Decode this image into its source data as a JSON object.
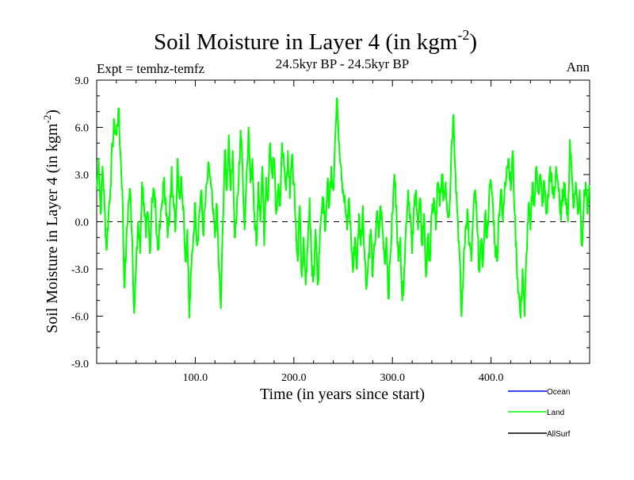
{
  "chart_data": {
    "type": "line",
    "title": "Soil Moisture in Layer 4 (in kgm",
    "title_superscript": "-2",
    "title_close": ")",
    "subtitle": "24.5kyr BP - 24.5kyr BP",
    "left_label": "Expt = temhz-temfz",
    "right_label": "Ann",
    "xlabel": "Time (in years since start)",
    "ylabel": "Soil Moisture in Layer 4 (in kgm",
    "ylabel_superscript": "-2",
    "ylabel_close": ")",
    "xlim": [
      0,
      500
    ],
    "ylim": [
      -9,
      9
    ],
    "x_ticks": [
      {
        "value": 100,
        "label": "100.0"
      },
      {
        "value": 200,
        "label": "200.0"
      },
      {
        "value": 300,
        "label": "300.0"
      },
      {
        "value": 400,
        "label": "400.0"
      }
    ],
    "y_ticks": [
      {
        "value": 9,
        "label": "9.0"
      },
      {
        "value": 6,
        "label": "6.0"
      },
      {
        "value": 3,
        "label": "3.0"
      },
      {
        "value": 0,
        "label": "0.0"
      },
      {
        "value": -3,
        "label": "-3.0"
      },
      {
        "value": -6,
        "label": "-6.0"
      },
      {
        "value": -9,
        "label": "-9.0"
      }
    ],
    "zero_line": true,
    "legend_position": "bottom-right",
    "series": [
      {
        "name": "Ocean",
        "color": "#0000ff",
        "values": []
      },
      {
        "name": "Land",
        "color": "#00ff00",
        "x": [
          0,
          500
        ],
        "anchors": [
          [
            0,
            2.0
          ],
          [
            2,
            4.0
          ],
          [
            4,
            0.5
          ],
          [
            6,
            3.5
          ],
          [
            8,
            1.0
          ],
          [
            10,
            -1.8
          ],
          [
            12,
            0.5
          ],
          [
            14,
            2.2
          ],
          [
            16,
            5.0
          ],
          [
            18,
            6.2
          ],
          [
            20,
            5.5
          ],
          [
            22,
            7.2
          ],
          [
            24,
            4.5
          ],
          [
            26,
            2.0
          ],
          [
            28,
            -4.2
          ],
          [
            30,
            -1.5
          ],
          [
            32,
            1.0
          ],
          [
            34,
            2.0
          ],
          [
            36,
            -1.0
          ],
          [
            38,
            -5.8
          ],
          [
            40,
            -3.0
          ],
          [
            42,
            0.0
          ],
          [
            44,
            -2.0
          ],
          [
            46,
            2.5
          ],
          [
            48,
            1.2
          ],
          [
            50,
            -1.0
          ],
          [
            52,
            0.5
          ],
          [
            54,
            -2.0
          ],
          [
            56,
            1.5
          ],
          [
            58,
            2.0
          ],
          [
            60,
            0.5
          ],
          [
            62,
            -1.8
          ],
          [
            64,
            -0.5
          ],
          [
            66,
            1.0
          ],
          [
            68,
            2.5
          ],
          [
            70,
            1.5
          ],
          [
            72,
            -1.0
          ],
          [
            74,
            0.5
          ],
          [
            76,
            3.5
          ],
          [
            78,
            1.0
          ],
          [
            80,
            -0.5
          ],
          [
            82,
            4.0
          ],
          [
            84,
            1.5
          ],
          [
            86,
            2.8
          ],
          [
            88,
            1.0
          ],
          [
            90,
            -2.5
          ],
          [
            92,
            -0.5
          ],
          [
            94,
            -6.1
          ],
          [
            96,
            -3.0
          ],
          [
            98,
            -1.0
          ],
          [
            100,
            1.2
          ],
          [
            102,
            -1.5
          ],
          [
            104,
            0.5
          ],
          [
            106,
            2.0
          ],
          [
            108,
            -0.8
          ],
          [
            110,
            1.0
          ],
          [
            112,
            2.5
          ],
          [
            114,
            3.5
          ],
          [
            116,
            2.2
          ],
          [
            118,
            0.5
          ],
          [
            120,
            -1.0
          ],
          [
            122,
            1.0
          ],
          [
            124,
            -3.0
          ],
          [
            126,
            -5.5
          ],
          [
            128,
            0.0
          ],
          [
            130,
            4.5
          ],
          [
            132,
            2.0
          ],
          [
            134,
            5.5
          ],
          [
            136,
            2.0
          ],
          [
            138,
            4.5
          ],
          [
            140,
            -1.0
          ],
          [
            142,
            0.5
          ],
          [
            144,
            2.5
          ],
          [
            146,
            5.8
          ],
          [
            148,
            3.5
          ],
          [
            150,
            -0.5
          ],
          [
            152,
            3.0
          ],
          [
            154,
            6.0
          ],
          [
            156,
            2.5
          ],
          [
            158,
            4.0
          ],
          [
            160,
            0.5
          ],
          [
            162,
            -1.5
          ],
          [
            164,
            2.5
          ],
          [
            166,
            0.0
          ],
          [
            168,
            3.5
          ],
          [
            170,
            -1.5
          ],
          [
            172,
            2.8
          ],
          [
            174,
            1.5
          ],
          [
            176,
            5.0
          ],
          [
            178,
            3.0
          ],
          [
            180,
            4.0
          ],
          [
            182,
            0.5
          ],
          [
            184,
            2.0
          ],
          [
            186,
            1.0
          ],
          [
            188,
            5.0
          ],
          [
            190,
            3.5
          ],
          [
            192,
            2.0
          ],
          [
            194,
            4.5
          ],
          [
            196,
            1.5
          ],
          [
            198,
            4.2
          ],
          [
            200,
            2.5
          ],
          [
            202,
            0.0
          ],
          [
            204,
            -2.5
          ],
          [
            206,
            1.0
          ],
          [
            208,
            -3.5
          ],
          [
            210,
            -1.0
          ],
          [
            212,
            -4.0
          ],
          [
            214,
            -1.5
          ],
          [
            216,
            1.5
          ],
          [
            218,
            -2.5
          ],
          [
            220,
            -3.5
          ],
          [
            222,
            -0.5
          ],
          [
            224,
            -4.0
          ],
          [
            226,
            -2.0
          ],
          [
            228,
            0.5
          ],
          [
            230,
            1.5
          ],
          [
            232,
            -0.5
          ],
          [
            234,
            2.5
          ],
          [
            236,
            1.0
          ],
          [
            238,
            3.5
          ],
          [
            240,
            2.0
          ],
          [
            242,
            5.5
          ],
          [
            244,
            7.8
          ],
          [
            246,
            5.0
          ],
          [
            248,
            3.5
          ],
          [
            250,
            2.0
          ],
          [
            252,
            1.0
          ],
          [
            254,
            -0.5
          ],
          [
            256,
            1.5
          ],
          [
            258,
            -1.0
          ],
          [
            260,
            -3.2
          ],
          [
            262,
            -1.0
          ],
          [
            264,
            -3.0
          ],
          [
            266,
            0.5
          ],
          [
            268,
            -1.5
          ],
          [
            270,
            1.0
          ],
          [
            272,
            -2.5
          ],
          [
            274,
            -4.0
          ],
          [
            276,
            -2.0
          ],
          [
            278,
            -0.5
          ],
          [
            280,
            -3.5
          ],
          [
            282,
            -1.5
          ],
          [
            284,
            0.5
          ],
          [
            286,
            -1.0
          ],
          [
            288,
            1.0
          ],
          [
            290,
            -0.5
          ],
          [
            292,
            -2.5
          ],
          [
            294,
            -1.0
          ],
          [
            296,
            -4.9
          ],
          [
            298,
            -2.0
          ],
          [
            300,
            0.5
          ],
          [
            302,
            3.0
          ],
          [
            304,
            1.0
          ],
          [
            306,
            -2.5
          ],
          [
            308,
            -1.0
          ],
          [
            310,
            -5.0
          ],
          [
            312,
            -3.0
          ],
          [
            314,
            0.0
          ],
          [
            316,
            2.0
          ],
          [
            318,
            0.5
          ],
          [
            320,
            -2.0
          ],
          [
            322,
            1.0
          ],
          [
            324,
            2.0
          ],
          [
            326,
            -0.5
          ],
          [
            328,
            1.5
          ],
          [
            330,
            -1.5
          ],
          [
            332,
            0.5
          ],
          [
            334,
            -3.5
          ],
          [
            336,
            -1.0
          ],
          [
            338,
            -2.5
          ],
          [
            340,
            0.5
          ],
          [
            342,
            1.5
          ],
          [
            344,
            -0.5
          ],
          [
            346,
            2.5
          ],
          [
            348,
            1.0
          ],
          [
            350,
            3.0
          ],
          [
            352,
            1.5
          ],
          [
            354,
            2.5
          ],
          [
            356,
            0.5
          ],
          [
            358,
            1.0
          ],
          [
            360,
            5.0
          ],
          [
            362,
            6.8
          ],
          [
            364,
            3.0
          ],
          [
            366,
            0.5
          ],
          [
            368,
            -2.0
          ],
          [
            370,
            -6.0
          ],
          [
            372,
            -3.0
          ],
          [
            374,
            -0.5
          ],
          [
            376,
            0.8
          ],
          [
            378,
            -1.5
          ],
          [
            380,
            -2.5
          ],
          [
            382,
            0.5
          ],
          [
            384,
            2.0
          ],
          [
            386,
            -0.5
          ],
          [
            388,
            -3.0
          ],
          [
            390,
            -1.5
          ],
          [
            392,
            -2.5
          ],
          [
            394,
            0.5
          ],
          [
            396,
            -1.0
          ],
          [
            398,
            1.5
          ],
          [
            400,
            2.5
          ],
          [
            402,
            1.0
          ],
          [
            404,
            -1.5
          ],
          [
            406,
            -2.5
          ],
          [
            408,
            0.5
          ],
          [
            410,
            2.0
          ],
          [
            412,
            0.0
          ],
          [
            414,
            2.5
          ],
          [
            416,
            3.5
          ],
          [
            418,
            4.0
          ],
          [
            420,
            2.0
          ],
          [
            422,
            4.5
          ],
          [
            424,
            0.5
          ],
          [
            426,
            -2.5
          ],
          [
            428,
            -4.5
          ],
          [
            430,
            -6.1
          ],
          [
            432,
            -3.0
          ],
          [
            434,
            -6.0
          ],
          [
            436,
            -2.0
          ],
          [
            438,
            1.0
          ],
          [
            440,
            -0.5
          ],
          [
            442,
            2.5
          ],
          [
            444,
            1.0
          ],
          [
            446,
            3.5
          ],
          [
            448,
            2.0
          ],
          [
            450,
            3.0
          ],
          [
            452,
            1.0
          ],
          [
            454,
            2.5
          ],
          [
            456,
            0.5
          ],
          [
            458,
            1.5
          ],
          [
            460,
            3.5
          ],
          [
            462,
            2.0
          ],
          [
            464,
            1.5
          ],
          [
            466,
            3.5
          ],
          [
            468,
            2.5
          ],
          [
            470,
            0.5
          ],
          [
            472,
            1.0
          ],
          [
            474,
            2.5
          ],
          [
            476,
            1.5
          ],
          [
            478,
            0.0
          ],
          [
            480,
            5.2
          ],
          [
            482,
            3.0
          ],
          [
            484,
            1.0
          ],
          [
            486,
            2.5
          ],
          [
            488,
            0.5
          ],
          [
            490,
            2.0
          ],
          [
            492,
            -1.5
          ],
          [
            494,
            1.0
          ],
          [
            496,
            2.5
          ],
          [
            498,
            0.5
          ],
          [
            500,
            2.0
          ]
        ]
      },
      {
        "name": "AllSurf",
        "color": "#000000",
        "values": []
      }
    ]
  }
}
